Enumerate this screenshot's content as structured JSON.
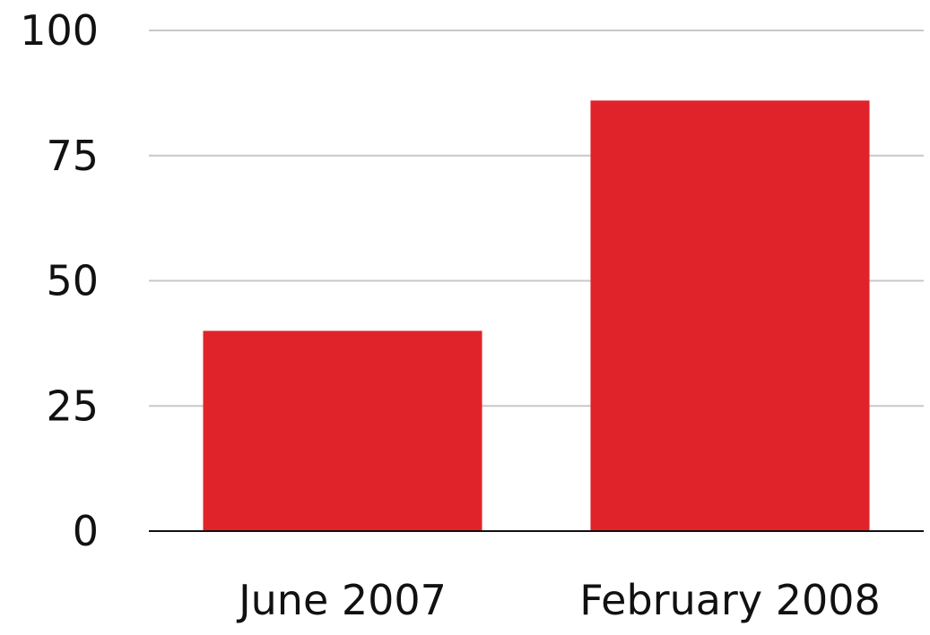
{
  "chart_data": {
    "type": "bar",
    "categories": [
      "June 2007",
      "February 2008"
    ],
    "values": [
      40,
      86
    ],
    "title": "",
    "xlabel": "",
    "ylabel": "",
    "ylim": [
      0,
      100
    ],
    "yticks": [
      0,
      25,
      50,
      75,
      100
    ],
    "grid": true,
    "legend": "none",
    "colors": {
      "bar": "#e0232a",
      "gridline": "#c8c8c8",
      "baseline": "#111111",
      "text": "#111111"
    }
  }
}
